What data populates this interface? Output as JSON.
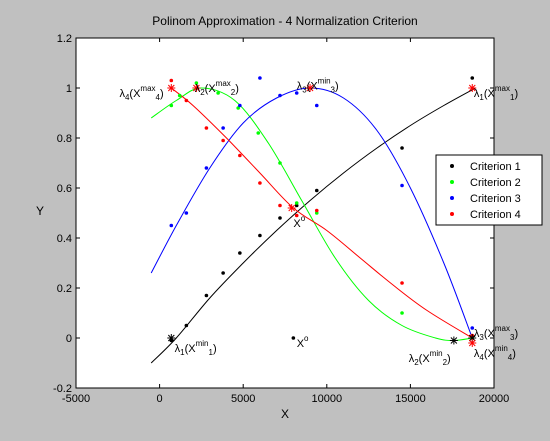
{
  "chart_data": {
    "type": "scatter",
    "title": "Polinom Approximation - 4 Normalization Criterion",
    "xlabel": "X",
    "ylabel": "Y",
    "xlim": [
      -5000,
      20000
    ],
    "ylim": [
      -0.2,
      1.2
    ],
    "xticks": [
      -5000,
      0,
      5000,
      10000,
      15000,
      20000
    ],
    "yticks": [
      -0.2,
      0,
      0.2,
      0.4,
      0.6,
      0.8,
      1,
      1.2
    ],
    "xtick_labels": [
      "-5000",
      "0",
      "5000",
      "10000",
      "15000",
      "20000"
    ],
    "ytick_labels": [
      "-0.2",
      "0",
      "0.2",
      "0.4",
      "0.6",
      "0.8",
      "1",
      "1.2"
    ],
    "grid": false,
    "legend_position": "right",
    "series": [
      {
        "name": "Criterion 1",
        "color": "#000000",
        "points": [
          [
            700,
            -0.01
          ],
          [
            1600,
            0.05
          ],
          [
            2800,
            0.17
          ],
          [
            3800,
            0.26
          ],
          [
            4800,
            0.34
          ],
          [
            6000,
            0.41
          ],
          [
            7200,
            0.48
          ],
          [
            8200,
            0.53
          ],
          [
            9400,
            0.59
          ],
          [
            14500,
            0.76
          ],
          [
            18700,
            1.04
          ]
        ],
        "curve": [
          [
            -500,
            -0.1
          ],
          [
            1000,
            0.0
          ],
          [
            3000,
            0.16
          ],
          [
            5000,
            0.3
          ],
          [
            7000,
            0.43
          ],
          [
            9000,
            0.55
          ],
          [
            11000,
            0.66
          ],
          [
            13000,
            0.76
          ],
          [
            15000,
            0.85
          ],
          [
            17000,
            0.93
          ],
          [
            18900,
            1.0
          ]
        ]
      },
      {
        "name": "Criterion 2",
        "color": "#00ff00",
        "points": [
          [
            700,
            0.93
          ],
          [
            1200,
            0.97
          ],
          [
            2200,
            1.02
          ],
          [
            3500,
            0.98
          ],
          [
            4700,
            0.92
          ],
          [
            5900,
            0.82
          ],
          [
            7200,
            0.7
          ],
          [
            8200,
            0.54
          ],
          [
            9400,
            0.5
          ],
          [
            14500,
            0.1
          ],
          [
            18700,
            0.0
          ]
        ],
        "curve": [
          [
            -500,
            0.88
          ],
          [
            1000,
            0.95
          ],
          [
            2500,
            1.0
          ],
          [
            4500,
            0.95
          ],
          [
            6500,
            0.78
          ],
          [
            8500,
            0.55
          ],
          [
            10500,
            0.32
          ],
          [
            12500,
            0.15
          ],
          [
            14500,
            0.05
          ],
          [
            16500,
            0.0
          ],
          [
            17600,
            -0.01
          ],
          [
            18700,
            0.0
          ]
        ]
      },
      {
        "name": "Criterion 3",
        "color": "#0000ff",
        "points": [
          [
            700,
            0.45
          ],
          [
            1600,
            0.5
          ],
          [
            2800,
            0.68
          ],
          [
            3800,
            0.84
          ],
          [
            4800,
            0.93
          ],
          [
            6000,
            1.04
          ],
          [
            7200,
            0.97
          ],
          [
            8200,
            0.98
          ],
          [
            9400,
            0.93
          ],
          [
            14500,
            0.61
          ],
          [
            18700,
            0.04
          ]
        ],
        "curve": [
          [
            -500,
            0.26
          ],
          [
            1000,
            0.45
          ],
          [
            3000,
            0.68
          ],
          [
            5000,
            0.86
          ],
          [
            7000,
            0.96
          ],
          [
            9000,
            1.0
          ],
          [
            11000,
            0.96
          ],
          [
            13000,
            0.83
          ],
          [
            15000,
            0.6
          ],
          [
            17000,
            0.3
          ],
          [
            18700,
            0.0
          ]
        ]
      },
      {
        "name": "Criterion 4",
        "color": "#ff0000",
        "points": [
          [
            700,
            1.03
          ],
          [
            1600,
            0.95
          ],
          [
            2800,
            0.84
          ],
          [
            3800,
            0.79
          ],
          [
            4800,
            0.73
          ],
          [
            6000,
            0.62
          ],
          [
            7200,
            0.53
          ],
          [
            8200,
            0.49
          ],
          [
            9400,
            0.51
          ],
          [
            14500,
            0.22
          ],
          [
            18700,
            0.01
          ]
        ],
        "curve": [
          [
            700,
            1.0
          ],
          [
            2000,
            0.93
          ],
          [
            4000,
            0.8
          ],
          [
            6000,
            0.66
          ],
          [
            8000,
            0.52
          ],
          [
            10000,
            0.43
          ],
          [
            12000,
            0.32
          ],
          [
            14000,
            0.21
          ],
          [
            16000,
            0.11
          ],
          [
            18700,
            0.0
          ]
        ]
      }
    ],
    "markers": [
      {
        "x": 700,
        "y": 1.0,
        "color": "#ff0000"
      },
      {
        "x": 2200,
        "y": 1.0,
        "color": "#ff0000"
      },
      {
        "x": 9000,
        "y": 1.0,
        "color": "#ff0000"
      },
      {
        "x": 18700,
        "y": 1.0,
        "color": "#ff0000"
      },
      {
        "x": 7900,
        "y": 0.52,
        "color": "#ff0000"
      },
      {
        "x": 700,
        "y": 0.0,
        "color": "#000000"
      },
      {
        "x": 17600,
        "y": -0.01,
        "color": "#000000"
      },
      {
        "x": 18700,
        "y": 0.0,
        "color": "#000000"
      },
      {
        "x": 18700,
        "y": -0.02,
        "color": "#ff0000"
      }
    ],
    "extra_points": [
      {
        "x": 8000,
        "y": 0.0,
        "color": "#000000"
      }
    ],
    "annotations": [
      {
        "main": "λ",
        "sub": "4",
        "paren_open": "(X",
        "sup": "max",
        "sup_sub": "4",
        "paren_close": ")",
        "x": -2400,
        "y": 0.98
      },
      {
        "main": "λ",
        "sub": "2",
        "paren_open": "(X",
        "sup": "max",
        "sup_sub": "2",
        "paren_close": ")",
        "x": 2100,
        "y": 1.0
      },
      {
        "main": "λ",
        "sub": "3",
        "paren_open": "(X",
        "sup": "min",
        "sup_sub": "3",
        "paren_close": ")",
        "x": 8200,
        "y": 1.01
      },
      {
        "main": "λ",
        "sub": "1",
        "paren_open": "(X",
        "sup": "max",
        "sup_sub": "1",
        "paren_close": ")",
        "x": 18800,
        "y": 0.98
      },
      {
        "main": "X",
        "sub": "",
        "paren_open": "",
        "sup": "o",
        "sup_sub": "",
        "paren_close": "",
        "x": 8000,
        "y": 0.46
      },
      {
        "main": "λ",
        "sub": "1",
        "paren_open": "(X",
        "sup": "min",
        "sup_sub": "1",
        "paren_close": ")",
        "x": 900,
        "y": -0.04
      },
      {
        "main": "X",
        "sub": "",
        "paren_open": "",
        "sup": "o",
        "sup_sub": "",
        "paren_close": "",
        "x": 8200,
        "y": -0.02
      },
      {
        "main": "λ",
        "sub": "2",
        "paren_open": "(X",
        "sup": "min",
        "sup_sub": "2",
        "paren_close": ")",
        "x": 14900,
        "y": -0.08
      },
      {
        "main": "λ",
        "sub": "3",
        "paren_open": "(X",
        "sup": "max",
        "sup_sub": "3",
        "paren_close": ")",
        "x": 18800,
        "y": 0.02
      },
      {
        "main": "λ",
        "sub": "4",
        "paren_open": "(X",
        "sup": "min",
        "sup_sub": "4",
        "paren_close": ")",
        "x": 18800,
        "y": -0.06
      }
    ]
  }
}
